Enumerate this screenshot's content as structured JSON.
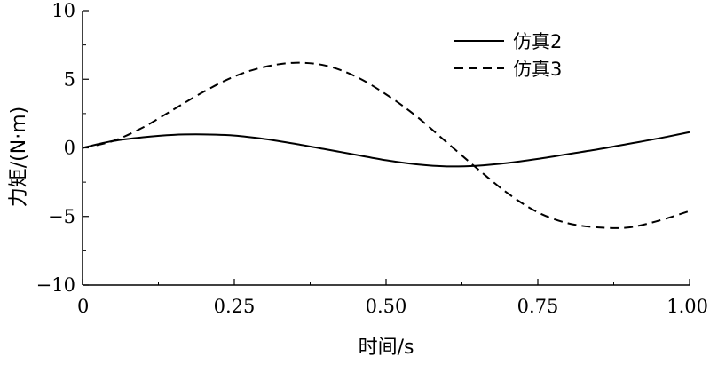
{
  "chart_data": {
    "type": "line",
    "xlabel": "时间/s",
    "ylabel": "力矩/(N·m)",
    "xlim": [
      0,
      1.0
    ],
    "ylim": [
      -10,
      10
    ],
    "xticks": [
      0,
      0.25,
      0.5,
      0.75,
      1.0
    ],
    "xtick_labels": [
      "0",
      "0.25",
      "0.50",
      "0.75",
      "1.00"
    ],
    "yticks": [
      -10,
      -5,
      0,
      5,
      10
    ],
    "ytick_labels": [
      "−10",
      "−5",
      "0",
      "5",
      "10"
    ],
    "grid": false,
    "legend_position": "top-right",
    "series": [
      {
        "name": "仿真2",
        "style": "solid",
        "color": "#000000",
        "x": [
          0,
          0.05,
          0.1,
          0.15,
          0.2,
          0.25,
          0.3,
          0.35,
          0.4,
          0.45,
          0.5,
          0.55,
          0.6,
          0.65,
          0.7,
          0.75,
          0.8,
          0.85,
          0.9,
          0.95,
          1.0
        ],
        "y": [
          0,
          0.5,
          0.78,
          0.95,
          0.98,
          0.9,
          0.65,
          0.3,
          -0.1,
          -0.5,
          -0.9,
          -1.2,
          -1.35,
          -1.3,
          -1.1,
          -0.8,
          -0.45,
          -0.1,
          0.3,
          0.7,
          1.15
        ]
      },
      {
        "name": "仿真3",
        "style": "dashed",
        "color": "#000000",
        "x": [
          0,
          0.05,
          0.1,
          0.15,
          0.2,
          0.25,
          0.3,
          0.35,
          0.4,
          0.45,
          0.5,
          0.55,
          0.6,
          0.65,
          0.7,
          0.75,
          0.8,
          0.85,
          0.9,
          0.95,
          1.0
        ],
        "y": [
          0,
          0.5,
          1.5,
          2.8,
          4.1,
          5.2,
          5.9,
          6.2,
          6.0,
          5.2,
          3.9,
          2.3,
          0.4,
          -1.5,
          -3.3,
          -4.7,
          -5.5,
          -5.8,
          -5.8,
          -5.3,
          -4.6
        ]
      }
    ]
  }
}
